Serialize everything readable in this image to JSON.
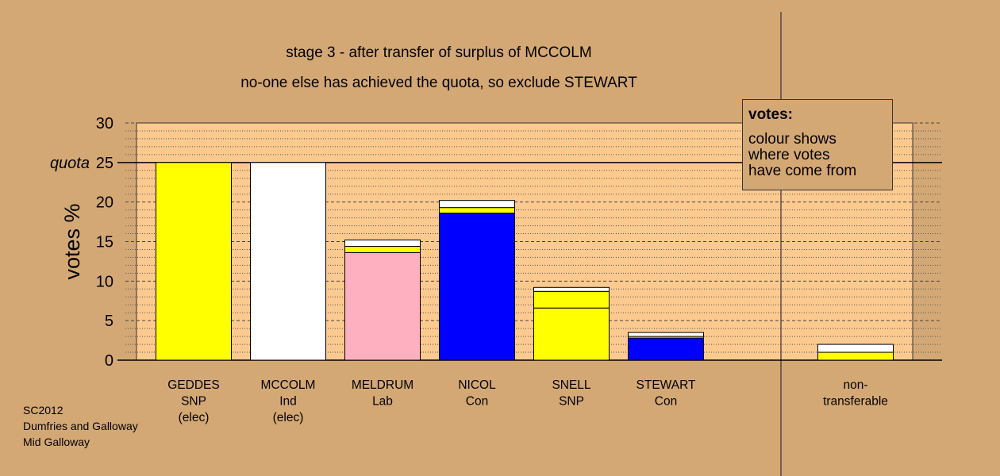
{
  "chart_data": {
    "type": "bar",
    "title": "stage 3 - after transfer of surplus of MCCOLM",
    "subtitle": "no-one else has achieved the quota, so exclude STEWART",
    "ylabel": "votes %",
    "ylim": [
      0,
      30
    ],
    "yticks": [
      0,
      5,
      10,
      15,
      20,
      25,
      30
    ],
    "quota": 25,
    "quota_label": "quota",
    "categories": [
      {
        "lines": [
          "GEDDES",
          "SNP",
          "(elec)"
        ],
        "segments": [
          {
            "value": 25.0,
            "color": "#ffff00"
          }
        ]
      },
      {
        "lines": [
          "MCCOLM",
          "Ind",
          "(elec)"
        ],
        "segments": [
          {
            "value": 25.0,
            "color": "#ffffff"
          }
        ]
      },
      {
        "lines": [
          "MELDRUM",
          "Lab"
        ],
        "segments": [
          {
            "value": 13.6,
            "color": "#ffb0c0"
          },
          {
            "value": 0.8,
            "color": "#ffff00"
          },
          {
            "value": 0.8,
            "color": "#ffffff"
          }
        ]
      },
      {
        "lines": [
          "NICOL",
          "Con"
        ],
        "segments": [
          {
            "value": 18.6,
            "color": "#0000ff"
          },
          {
            "value": 0.7,
            "color": "#ffff00"
          },
          {
            "value": 0.9,
            "color": "#ffffff"
          }
        ]
      },
      {
        "lines": [
          "SNELL",
          "SNP"
        ],
        "segments": [
          {
            "value": 6.6,
            "color": "#ffff00"
          },
          {
            "value": 2.1,
            "color": "#ffff00"
          },
          {
            "value": 0.5,
            "color": "#ffffff"
          }
        ]
      },
      {
        "lines": [
          "STEWART",
          "Con"
        ],
        "segments": [
          {
            "value": 2.8,
            "color": "#0000ff"
          },
          {
            "value": 0.2,
            "color": "#ffff00"
          },
          {
            "value": 0.5,
            "color": "#ffffff"
          }
        ]
      },
      {
        "lines": [
          "non-",
          "transferable"
        ],
        "segments": [
          {
            "value": 1.0,
            "color": "#ffff00"
          },
          {
            "value": 1.0,
            "color": "#ffffff"
          }
        ]
      }
    ],
    "grid": true,
    "colors": {
      "background": "#d4a875",
      "plot_area": "#fcc98f"
    }
  },
  "legend": {
    "title": "votes:",
    "text": "colour shows\nwhere votes\nhave come from"
  },
  "footer": {
    "line1": "SC2012",
    "line2": "Dumfries and Galloway",
    "line3": "Mid Galloway"
  }
}
